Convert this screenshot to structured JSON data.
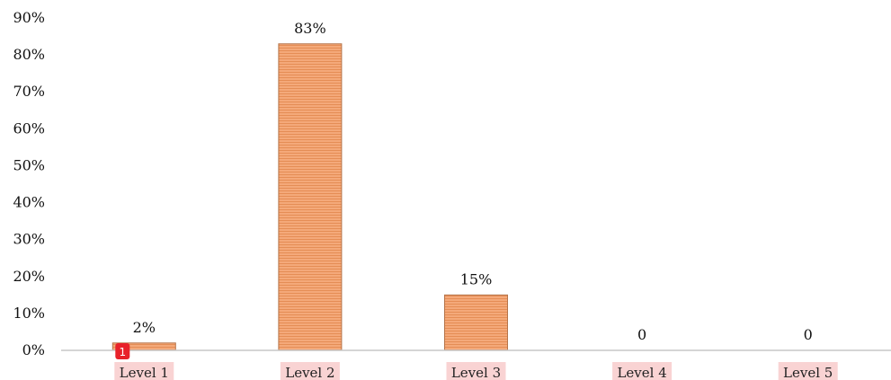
{
  "chart_data": {
    "type": "bar",
    "title": "",
    "xlabel": "",
    "ylabel": "",
    "categories": [
      "Level 1",
      "Level 2",
      "Level 3",
      "Level 4",
      "Level 5"
    ],
    "values": [
      2,
      83,
      15,
      0,
      0
    ],
    "data_labels": [
      "2%",
      "83%",
      "15%",
      "0",
      "0"
    ],
    "ylim": [
      0,
      90
    ],
    "yticks": [
      0,
      10,
      20,
      30,
      40,
      50,
      60,
      70,
      80,
      90
    ],
    "ytick_labels": [
      "0%",
      "10%",
      "20%",
      "30%",
      "40%",
      "50%",
      "60%",
      "70%",
      "80%",
      "90%"
    ],
    "grid": false,
    "legend": "none",
    "bar_color": "#f3a56f",
    "bar_stripe_color": "#e8925a",
    "bar_border_color": "#b5744a",
    "label_highlight_color": "#f9d3d3"
  },
  "annotations": {
    "marker_badge": {
      "text": "1",
      "color": "#e8222a"
    }
  }
}
